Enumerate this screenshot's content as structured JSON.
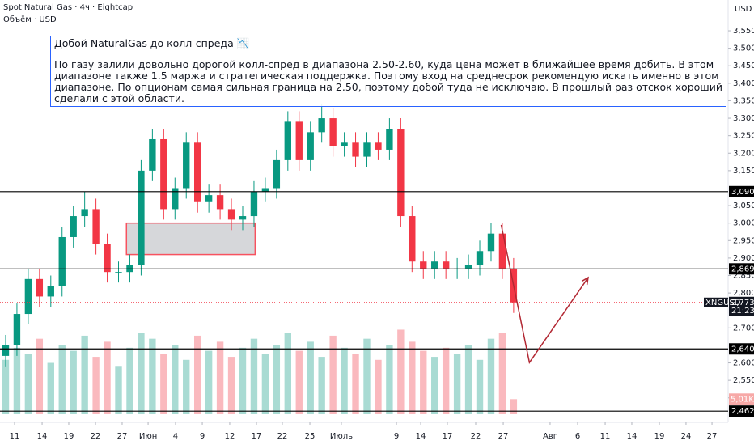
{
  "chart_data": {
    "type": "candlestick",
    "title": "Spot Natural Gas · 4ч · Eightcap",
    "subtitle": "Объём · USD",
    "currency": "USD",
    "symbol": "XNGUSD",
    "up_color": "#089981",
    "down_color": "#f23645",
    "open": [
      2620,
      2650,
      2740,
      2840,
      2790,
      2820,
      2960,
      3020,
      3040,
      2940,
      2860,
      2860,
      2880,
      3150,
      3240,
      3040,
      3100,
      3230,
      3060,
      3080,
      3040,
      3010,
      3020,
      3090,
      3100,
      3180,
      3290,
      3180,
      3260,
      3300,
      3220,
      3230,
      3190,
      3230,
      3210,
      3270,
      3020,
      2890,
      2870,
      2890,
      2870,
      2870,
      2880,
      2920,
      2970,
      2870
    ],
    "high": [
      2680,
      2770,
      2870,
      2870,
      2850,
      2990,
      3050,
      3090,
      3070,
      2970,
      2890,
      2910,
      3180,
      3270,
      3270,
      3130,
      3260,
      3260,
      3110,
      3110,
      3070,
      3050,
      3120,
      3130,
      3210,
      3320,
      3320,
      3290,
      3340,
      3330,
      3260,
      3260,
      3260,
      3260,
      3300,
      3300,
      3050,
      2920,
      2920,
      2920,
      2900,
      2910,
      2950,
      3000,
      3000,
      2900
    ],
    "low": [
      2590,
      2620,
      2710,
      2760,
      2760,
      2790,
      2930,
      2990,
      2910,
      2830,
      2830,
      2830,
      2850,
      3120,
      3010,
      3010,
      3070,
      3030,
      3030,
      3010,
      2980,
      2980,
      2990,
      3060,
      3070,
      3150,
      3150,
      3150,
      3230,
      3190,
      3190,
      3160,
      3160,
      3180,
      3180,
      2990,
      2860,
      2840,
      2840,
      2840,
      2840,
      2840,
      2850,
      2890,
      2840,
      2743
    ],
    "close": [
      2650,
      2740,
      2840,
      2790,
      2820,
      2960,
      3020,
      3040,
      2940,
      2860,
      2860,
      2880,
      3150,
      3240,
      3040,
      3100,
      3230,
      3060,
      3080,
      3040,
      3010,
      3020,
      3090,
      3100,
      3180,
      3290,
      3180,
      3260,
      3300,
      3220,
      3230,
      3190,
      3230,
      3210,
      3270,
      3020,
      2890,
      2870,
      2890,
      2870,
      2870,
      2880,
      2920,
      2970,
      2870,
      2773
    ],
    "volume": [
      18,
      22,
      20,
      25,
      17,
      23,
      21,
      26,
      19,
      24,
      16,
      22,
      27,
      25,
      20,
      23,
      18,
      26,
      21,
      24,
      19,
      22,
      25,
      20,
      23,
      27,
      21,
      24,
      19,
      26,
      22,
      20,
      25,
      18,
      23,
      28,
      24,
      21,
      19,
      22,
      20,
      23,
      18,
      25,
      27,
      5.01
    ],
    "volume_last_label": "5,01K",
    "vlim": [
      0,
      30
    ],
    "xlim": [
      -0.5,
      64
    ],
    "xticks": [
      {
        "value": 0.79,
        "label": "11"
      },
      {
        "value": 3.23,
        "label": "14"
      },
      {
        "value": 5.59,
        "label": "19"
      },
      {
        "value": 7.96,
        "label": "22"
      },
      {
        "value": 10.32,
        "label": "27"
      },
      {
        "value": 12.62,
        "label": "Июн"
      },
      {
        "value": 15.05,
        "label": "4"
      },
      {
        "value": 17.42,
        "label": "9"
      },
      {
        "value": 19.85,
        "label": "12"
      },
      {
        "value": 22.22,
        "label": "17"
      },
      {
        "value": 24.51,
        "label": "22"
      },
      {
        "value": 26.95,
        "label": "25"
      },
      {
        "value": 29.74,
        "label": "Июль"
      },
      {
        "value": 34.62,
        "label": "9"
      },
      {
        "value": 36.77,
        "label": "14"
      },
      {
        "value": 39.13,
        "label": "17"
      },
      {
        "value": 41.64,
        "label": "22"
      },
      {
        "value": 44.08,
        "label": "27"
      },
      {
        "value": 48.23,
        "label": "Авг"
      },
      {
        "value": 50.67,
        "label": "6"
      },
      {
        "value": 53.11,
        "label": "11"
      },
      {
        "value": 55.47,
        "label": "14"
      },
      {
        "value": 57.91,
        "label": "19"
      },
      {
        "value": 60.27,
        "label": "24"
      },
      {
        "value": 62.57,
        "label": "27"
      }
    ],
    "ylim": [
      2430,
      3638
    ],
    "yticks": [
      {
        "value": 3550,
        "label": "3,550"
      },
      {
        "value": 3500,
        "label": "3,500"
      },
      {
        "value": 3450,
        "label": "3,450"
      },
      {
        "value": 3400,
        "label": "3,400"
      },
      {
        "value": 3350,
        "label": "3,350"
      },
      {
        "value": 3300,
        "label": "3,300"
      },
      {
        "value": 3250,
        "label": "3,250"
      },
      {
        "value": 3200,
        "label": "3,200"
      },
      {
        "value": 3150,
        "label": "3,150"
      },
      {
        "value": 3050,
        "label": "3,050"
      },
      {
        "value": 3000,
        "label": "3,000"
      },
      {
        "value": 2950,
        "label": "2,950"
      },
      {
        "value": 2900,
        "label": "2,900"
      },
      {
        "value": 2850,
        "label": "2,850"
      },
      {
        "value": 2800,
        "label": "2,800"
      },
      {
        "value": 2700,
        "label": "2,700"
      },
      {
        "value": 2600,
        "label": "2,600"
      },
      {
        "value": 2550,
        "label": "2,550"
      },
      {
        "value": 2500,
        "label": "2,500"
      }
    ],
    "levels": [
      {
        "value": 3090,
        "label": "3,090"
      },
      {
        "value": 2869,
        "label": "2,869"
      },
      {
        "value": 2640,
        "label": "2,640"
      },
      {
        "value": 2462,
        "label": "2,462"
      }
    ],
    "last_price": {
      "value": 2773,
      "label": "2,773"
    },
    "countdown": "21:23",
    "zone": {
      "x": [
        10.7,
        22.1
      ],
      "y": [
        2910,
        3000
      ]
    },
    "arrow": {
      "x": [
        43.9,
        46.4,
        51.6
      ],
      "y": [
        2995,
        2601,
        2844
      ]
    },
    "note": {
      "title": "Добой NaturalGas до колл-спреда 📉",
      "body": "По газу залили довольно дорогой колл-спред в диапазона 2.50-2.60, куда цена может в ближайшее время добить. В этом диапазоне также 1.5 маржа и стратегическая поддержка. Поэтому вход на среднесрок рекомендую искать именно в этом диапазоне. По опционам самая сильная граница на 2.50, поэтому добой туда не исключаю. В прошлый раз отскок хороший сделали с этой области."
    }
  }
}
